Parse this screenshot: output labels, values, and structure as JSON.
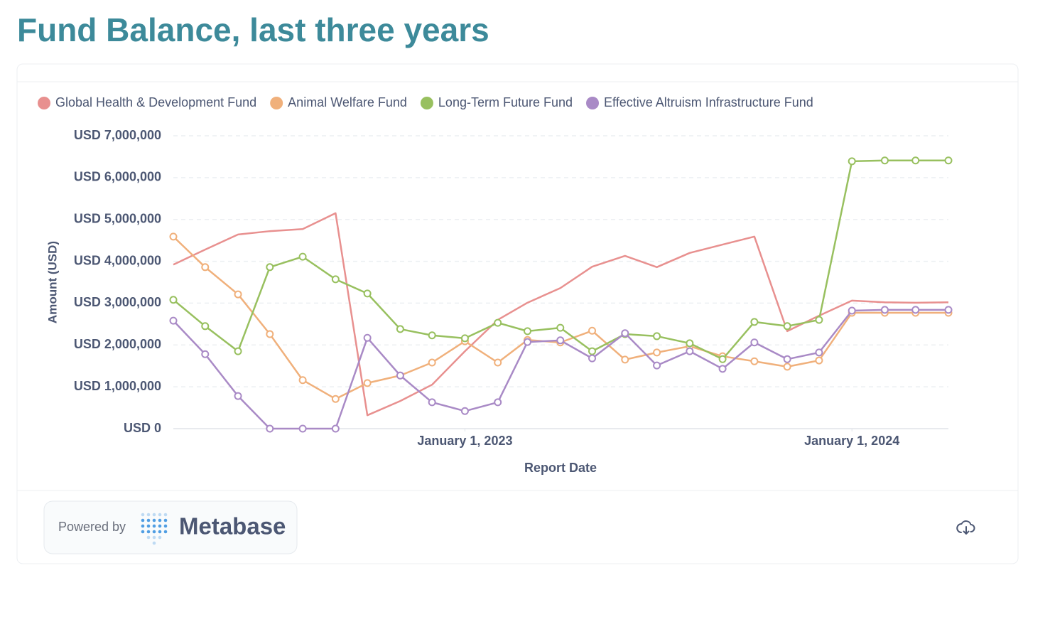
{
  "chart_data": {
    "type": "line",
    "title": "Fund Balance, last three years",
    "x_label": "Report Date",
    "y_label": "Amount (USD)",
    "x": [
      "2022-04-01",
      "2022-05-01",
      "2022-06-01",
      "2022-07-01",
      "2022-08-01",
      "2022-09-01",
      "2022-10-01",
      "2022-11-01",
      "2022-12-01",
      "2023-01-01",
      "2023-02-01",
      "2023-03-01",
      "2023-04-01",
      "2023-05-01",
      "2023-06-01",
      "2023-07-01",
      "2023-08-01",
      "2023-09-01",
      "2023-10-01",
      "2023-11-01",
      "2023-12-01",
      "2024-01-01",
      "2024-02-01",
      "2024-03-01",
      "2024-04-01"
    ],
    "xlim": [
      "2022-04-01",
      "2024-04-01"
    ],
    "xticks": [
      {
        "value": "2023-01-01",
        "label": "January 1, 2023"
      },
      {
        "value": "2024-01-01",
        "label": "January 1, 2024"
      }
    ],
    "ylim": [
      0,
      7000000
    ],
    "yticks": [
      {
        "value": 0,
        "label": "USD 0"
      },
      {
        "value": 1000000,
        "label": "USD 1,000,000"
      },
      {
        "value": 2000000,
        "label": "USD 2,000,000"
      },
      {
        "value": 3000000,
        "label": "USD 3,000,000"
      },
      {
        "value": 4000000,
        "label": "USD 4,000,000"
      },
      {
        "value": 5000000,
        "label": "USD 5,000,000"
      },
      {
        "value": 6000000,
        "label": "USD 6,000,000"
      },
      {
        "value": 7000000,
        "label": "USD 7,000,000"
      }
    ],
    "grid": true,
    "legend": "top-left",
    "series": [
      {
        "name": "Global Health & Development Fund",
        "color": "#e8908f",
        "markers": false,
        "values": [
          3920000,
          4280000,
          4640000,
          4720000,
          4770000,
          5150000,
          320000,
          660000,
          1050000,
          1850000,
          2600000,
          3010000,
          3360000,
          3870000,
          4130000,
          3860000,
          4200000,
          4400000,
          4590000,
          2330000,
          2700000,
          3060000,
          3020000,
          3010000,
          3020000
        ]
      },
      {
        "name": "Animal Welfare Fund",
        "color": "#f0b07b",
        "markers": true,
        "values": [
          4590000,
          3860000,
          3210000,
          2260000,
          1160000,
          710000,
          1090000,
          1270000,
          1580000,
          2090000,
          1580000,
          2120000,
          2060000,
          2340000,
          1650000,
          1820000,
          1970000,
          1730000,
          1610000,
          1480000,
          1630000,
          2770000,
          2770000,
          2770000,
          2770000
        ]
      },
      {
        "name": "Long-Term Future Fund",
        "color": "#98c05f",
        "markers": true,
        "values": [
          3080000,
          2450000,
          1850000,
          3860000,
          4110000,
          3570000,
          3230000,
          2380000,
          2230000,
          2160000,
          2530000,
          2330000,
          2410000,
          1850000,
          2260000,
          2210000,
          2040000,
          1660000,
          2550000,
          2450000,
          2600000,
          6390000,
          6410000,
          6410000,
          6410000
        ]
      },
      {
        "name": "Effective Altruism Infrastructure Fund",
        "color": "#a98ac6",
        "markers": true,
        "values": [
          2580000,
          1780000,
          780000,
          0,
          0,
          0,
          2170000,
          1270000,
          630000,
          420000,
          630000,
          2070000,
          2110000,
          1680000,
          2280000,
          1510000,
          1850000,
          1430000,
          2060000,
          1660000,
          1820000,
          2820000,
          2840000,
          2840000,
          2840000
        ]
      }
    ]
  },
  "footer": {
    "powered_by": "Powered by",
    "brand": "Metabase"
  }
}
